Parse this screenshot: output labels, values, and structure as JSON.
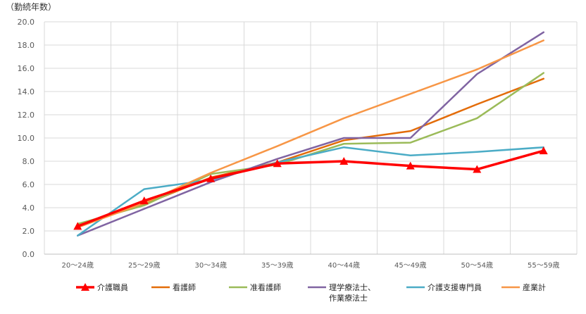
{
  "chart_data": {
    "type": "line",
    "ylabel": "（勤続年数）",
    "ylim": [
      0,
      20
    ],
    "y_ticks": [
      "0.0",
      "2.0",
      "4.0",
      "6.0",
      "8.0",
      "10.0",
      "12.0",
      "14.0",
      "16.0",
      "18.0",
      "20.0"
    ],
    "categories": [
      "20～24歳",
      "25～29歳",
      "30～34歳",
      "35～39歳",
      "40～44歳",
      "45～49歳",
      "50～54歳",
      "55～59歳"
    ],
    "grid": true,
    "legend_position": "bottom",
    "series": [
      {
        "name": "介護職員",
        "color": "#ff0000",
        "marker": "triangle",
        "values": [
          2.4,
          4.6,
          6.5,
          7.8,
          8.0,
          7.6,
          7.3,
          8.9
        ]
      },
      {
        "name": "看護師",
        "color": "#e36c09",
        "marker": "none",
        "values": [
          2.5,
          4.3,
          6.6,
          7.9,
          9.8,
          10.6,
          12.9,
          15.1
        ]
      },
      {
        "name": "准看護師",
        "color": "#9bbb59",
        "marker": "none",
        "values": [
          2.6,
          4.2,
          6.9,
          7.7,
          9.5,
          9.6,
          11.7,
          15.6
        ]
      },
      {
        "name": "理学療法士、\n作業療法士",
        "color": "#8064a2",
        "marker": "none",
        "values": [
          1.6,
          3.9,
          6.2,
          8.2,
          10.0,
          10.0,
          15.5,
          19.1
        ]
      },
      {
        "name": "介護支援専門員",
        "color": "#4bacc6",
        "marker": "none",
        "values": [
          1.6,
          5.6,
          6.4,
          7.9,
          9.2,
          8.5,
          8.8,
          9.2
        ]
      },
      {
        "name": "産業計",
        "color": "#f79646",
        "marker": "none",
        "values": [
          2.3,
          4.4,
          7.0,
          9.3,
          11.7,
          13.8,
          15.9,
          18.4
        ]
      }
    ]
  }
}
